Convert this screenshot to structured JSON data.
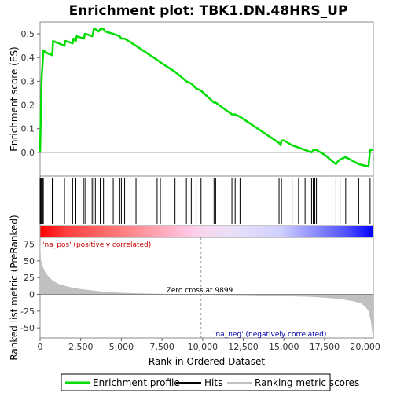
{
  "chart_data": {
    "type": "line",
    "title": "Enrichment plot: TBK1.DN.48HRS_UP",
    "xlabel": "Rank in Ordered Dataset",
    "ylabel_top": "Enrichment score (ES)",
    "ylabel_bottom": "Ranked list metric (PreRanked)",
    "xlim": [
      0,
      20500
    ],
    "ylim_top": [
      -0.1,
      0.55
    ],
    "ylim_bottom": [
      -65,
      85
    ],
    "x_ticks": [
      {
        "value": 0,
        "label": "0"
      },
      {
        "value": 2500,
        "label": "2,500"
      },
      {
        "value": 5000,
        "label": "5,000"
      },
      {
        "value": 7500,
        "label": "7,500"
      },
      {
        "value": 10000,
        "label": "10,000"
      },
      {
        "value": 12500,
        "label": "12,500"
      },
      {
        "value": 15000,
        "label": "15,000"
      },
      {
        "value": 17500,
        "label": "17,500"
      },
      {
        "value": 20000,
        "label": "20,000"
      }
    ],
    "y_ticks_top": [
      {
        "value": 0.0,
        "label": "0.0"
      },
      {
        "value": 0.1,
        "label": "0.1"
      },
      {
        "value": 0.2,
        "label": "0.2"
      },
      {
        "value": 0.3,
        "label": "0.3"
      },
      {
        "value": 0.4,
        "label": "0.4"
      },
      {
        "value": 0.5,
        "label": "0.5"
      }
    ],
    "y_ticks_bottom": [
      {
        "value": 75,
        "label": "75"
      },
      {
        "value": 50,
        "label": "50"
      },
      {
        "value": 25,
        "label": "25"
      },
      {
        "value": 0,
        "label": "0"
      },
      {
        "value": -25,
        "label": "-25"
      },
      {
        "value": -50,
        "label": "-50"
      }
    ],
    "es_curve": {
      "name": "Enrichment profile",
      "color": "#00dd00",
      "x": [
        0,
        50,
        100,
        150,
        200,
        400,
        750,
        800,
        1500,
        1550,
        2000,
        2050,
        2200,
        2250,
        2700,
        2750,
        2800,
        3200,
        3250,
        3300,
        3400,
        3600,
        3700,
        3900,
        4000,
        4500,
        4900,
        5000,
        5200,
        5900,
        7200,
        7400,
        8300,
        9000,
        9300,
        9600,
        9900,
        10700,
        10800,
        11000,
        11800,
        12000,
        12300,
        14700,
        14800,
        14850,
        15000,
        15500,
        15900,
        16300,
        16700,
        16800,
        16900,
        17000,
        17500,
        18200,
        18300,
        18450,
        18800,
        19600,
        20200,
        20300,
        20500
      ],
      "y": [
        0.0,
        0.18,
        0.32,
        0.37,
        0.43,
        0.42,
        0.41,
        0.47,
        0.45,
        0.47,
        0.46,
        0.48,
        0.47,
        0.49,
        0.48,
        0.5,
        0.5,
        0.49,
        0.5,
        0.52,
        0.52,
        0.51,
        0.52,
        0.52,
        0.51,
        0.5,
        0.49,
        0.48,
        0.48,
        0.45,
        0.39,
        0.38,
        0.34,
        0.3,
        0.29,
        0.27,
        0.26,
        0.21,
        0.21,
        0.2,
        0.16,
        0.16,
        0.15,
        0.04,
        0.03,
        0.05,
        0.05,
        0.03,
        0.02,
        0.01,
        0.0,
        0.01,
        0.01,
        0.01,
        -0.01,
        -0.05,
        -0.04,
        -0.03,
        -0.02,
        -0.05,
        -0.06,
        0.01,
        0.01
      ]
    },
    "hits": [
      0,
      50,
      100,
      150,
      200,
      750,
      800,
      1500,
      2000,
      2200,
      2700,
      2800,
      3200,
      3300,
      3400,
      3700,
      3900,
      4500,
      4900,
      5000,
      5200,
      5900,
      7200,
      7400,
      8300,
      9000,
      9300,
      9600,
      9900,
      10700,
      10800,
      11000,
      11800,
      12000,
      12300,
      14700,
      14850,
      15500,
      15900,
      16300,
      16700,
      16800,
      16900,
      17000,
      18200,
      18450,
      18800,
      19600,
      20300
    ],
    "ranked_metric": {
      "name": "Ranking metric scores",
      "color": "#c0c0c0",
      "x": [
        0,
        50,
        150,
        300,
        500,
        800,
        1200,
        1800,
        2500,
        3500,
        4500,
        6000,
        8000,
        9899,
        11000,
        13000,
        15000,
        16500,
        17500,
        18500,
        19200,
        19700,
        20000,
        20200,
        20350,
        20450,
        20500
      ],
      "y": [
        85,
        52,
        42,
        34,
        27,
        20,
        15,
        11,
        8,
        5,
        3,
        1.5,
        0.5,
        0,
        -0.8,
        -1.5,
        -2.5,
        -3.5,
        -5,
        -7,
        -10,
        -13,
        -18,
        -25,
        -40,
        -60,
        -62
      ]
    },
    "zero_cross": 9899,
    "annotations": {
      "zero_cross_text": "Zero cross at 9899",
      "pos_text": "'na_pos' (positively correlated)",
      "neg_text": "'na_neg' (negatively correlated)"
    },
    "legend": {
      "placement": "bottom",
      "items": [
        {
          "label": "Enrichment profile",
          "color": "#00dd00"
        },
        {
          "label": "Hits",
          "color": "#000000"
        },
        {
          "label": "Ranking metric scores",
          "color": "#c0c0c0"
        }
      ]
    },
    "colors": {
      "pos_label": "#cc0000",
      "neg_label": "#0000aa",
      "bar_red": "#ff0000",
      "bar_blue": "#0000ff",
      "bar_mid": "#ffffff"
    }
  }
}
